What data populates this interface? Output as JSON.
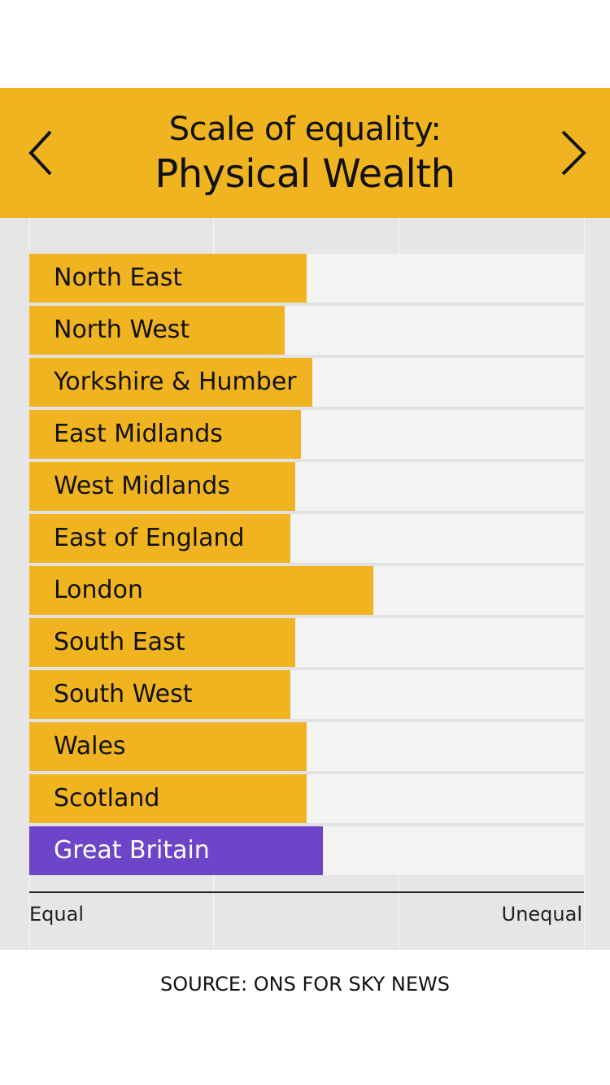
{
  "header": {
    "title_line1": "Scale of equality:",
    "title_line2": "Physical Wealth",
    "prev_icon": "chevron-left-icon",
    "next_icon": "chevron-right-icon"
  },
  "colors": {
    "accent": "#f0b421",
    "highlight": "#6c45c9",
    "text": "#111111"
  },
  "chart_data": {
    "type": "bar",
    "orientation": "horizontal",
    "title": "Scale of equality: Physical Wealth",
    "categories": [
      "North East",
      "North West",
      "Yorkshire & Humber",
      "East Midlands",
      "West Midlands",
      "East of England",
      "London",
      "South East",
      "South West",
      "Wales",
      "Scotland",
      "Great Britain"
    ],
    "values": [
      0.5,
      0.46,
      0.51,
      0.49,
      0.48,
      0.47,
      0.62,
      0.48,
      0.47,
      0.5,
      0.5,
      0.53
    ],
    "highlight_category": "Great Britain",
    "xlim": [
      0,
      1
    ],
    "axis_min_label": "Equal",
    "axis_max_label": "Unequal",
    "grid": true
  },
  "source": "SOURCE: ONS FOR SKY NEWS"
}
